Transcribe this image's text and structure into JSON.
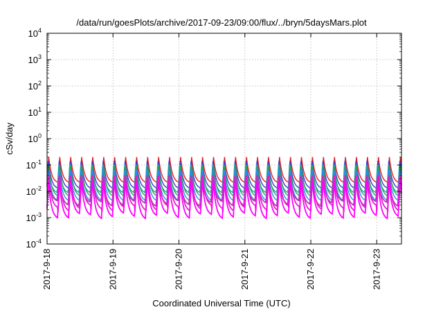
{
  "chart_data": {
    "type": "line",
    "title": "/data/run/goesPlots/archive/2017-09-23/09:00/flux/../bryn/5daysMars.plot",
    "xlabel": "Coordinated Universal Time (UTC)",
    "ylabel": "cSv/day",
    "yscale": "log",
    "ylim": [
      0.0001,
      10000
    ],
    "xlim": [
      "2017-09-18T00:00",
      "2017-09-23T09:00"
    ],
    "x_ticks": [
      "2017-9-18",
      "2017-9-19",
      "2017-9-20",
      "2017-9-21",
      "2017-9-22",
      "2017-9-23"
    ],
    "y_ticks": [
      {
        "base": "10",
        "exp": "-4"
      },
      {
        "base": "10",
        "exp": "-3"
      },
      {
        "base": "10",
        "exp": "-2"
      },
      {
        "base": "10",
        "exp": "-1"
      },
      {
        "base": "10",
        "exp": "0"
      },
      {
        "base": "10",
        "exp": "1"
      },
      {
        "base": "10",
        "exp": "2"
      },
      {
        "base": "10",
        "exp": "3"
      },
      {
        "base": "10",
        "exp": "4"
      }
    ],
    "grid": true,
    "legend": "none",
    "pattern": {
      "description": "periodic sawtooth dose rates, about 6 peaks per day",
      "period_hours": 4,
      "series_peak_values": [
        0.2,
        0.17,
        0.13,
        0.1,
        0.08,
        0.05,
        0.04,
        0.03
      ],
      "series_trough_values": [
        0.02,
        0.012,
        0.008,
        0.006,
        0.004,
        0.003,
        0.002,
        0.001
      ]
    },
    "series": [
      {
        "color": "#e41a1c",
        "peak": 0.2,
        "trough": 0.02
      },
      {
        "color": "#3a3ad6",
        "peak": 0.17,
        "trough": 0.012
      },
      {
        "color": "#1f9f9f",
        "peak": 0.13,
        "trough": 0.008
      },
      {
        "color": "#2aa05a",
        "peak": 0.1,
        "trough": 0.006
      },
      {
        "color": "#2a8cf0",
        "peak": 0.08,
        "trough": 0.004
      },
      {
        "color": "#b03ab0",
        "peak": 0.05,
        "trough": 0.003
      },
      {
        "color": "#e020c8",
        "peak": 0.04,
        "trough": 0.002
      },
      {
        "color": "#ff00ff",
        "peak": 0.03,
        "trough": 0.001
      }
    ]
  }
}
